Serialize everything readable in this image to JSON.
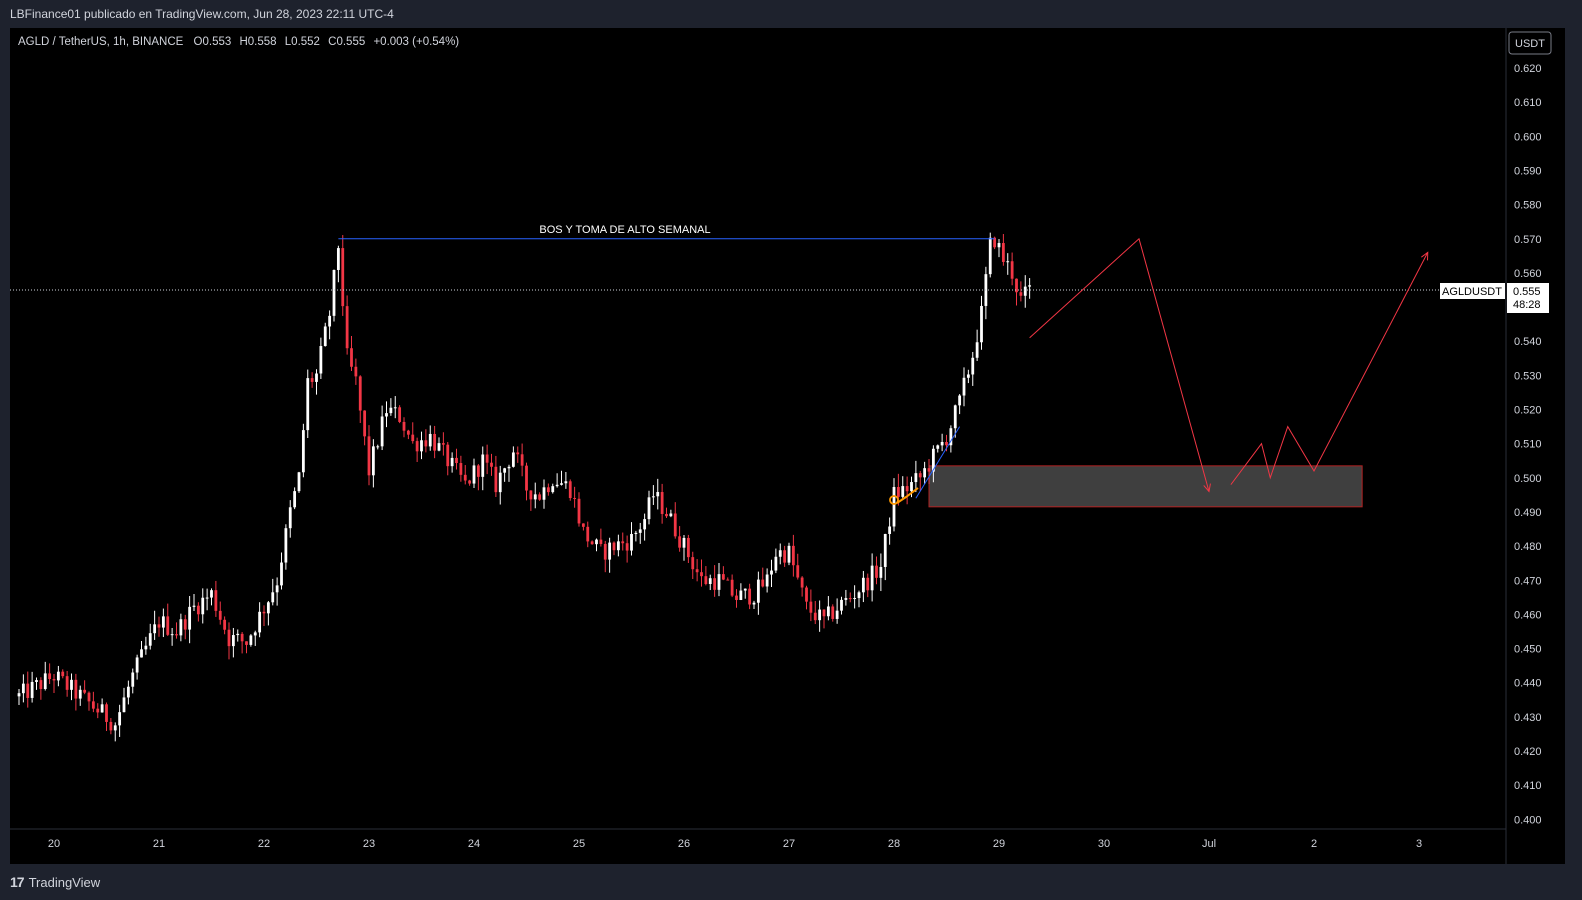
{
  "header": {
    "published": "LBFinance01 publicado en TradingView.com, Jun 28, 2023 22:11 UTC-4"
  },
  "legend": {
    "symbol": "AGLD / TetherUS, 1h, BINANCE",
    "open_label": "O",
    "open": "0.553",
    "high_label": "H",
    "high": "0.558",
    "low_label": "L",
    "low": "0.552",
    "close_label": "C",
    "close": "0.555",
    "change": "+0.003 (+0.54%)"
  },
  "price_axis": {
    "currency": "USDT",
    "ticks": [
      "0.620",
      "0.610",
      "0.600",
      "0.590",
      "0.580",
      "0.570",
      "0.560",
      "0.540",
      "0.530",
      "0.520",
      "0.510",
      "0.500",
      "0.490",
      "0.480",
      "0.470",
      "0.460",
      "0.450",
      "0.440",
      "0.430",
      "0.420",
      "0.410",
      "0.400"
    ]
  },
  "time_axis": {
    "ticks": [
      "20",
      "21",
      "22",
      "23",
      "24",
      "25",
      "26",
      "27",
      "28",
      "29",
      "30",
      "Jul",
      "2",
      "3"
    ]
  },
  "price_tag": {
    "symbol": "AGLDUSDT",
    "price": "0.555",
    "countdown": "48:28"
  },
  "annotation": {
    "bos_label": "BOS Y TOMA DE ALTO SEMANAL"
  },
  "footer": {
    "brand": "TradingView",
    "logo_glyph": "17"
  },
  "colors": {
    "background": "#000000",
    "up": "#ffffff",
    "down": "#f23645",
    "bos_line": "#2962ff",
    "projection": "#f23645",
    "zone_fill": "#4a4a4a",
    "zone_border": "#b22222",
    "marker": "#ff9800"
  },
  "chart_data": {
    "type": "candlestick",
    "symbol": "AGLD / TetherUS",
    "interval": "1h",
    "exchange": "BINANCE",
    "xlabel": "",
    "ylabel": "",
    "ylim": [
      0.395,
      0.625
    ],
    "grid": false,
    "last_price": 0.555,
    "price_path": [
      [
        "2023-06-19 16:00",
        0.436
      ],
      [
        "2023-06-20 00:00",
        0.442
      ],
      [
        "2023-06-20 06:00",
        0.436
      ],
      [
        "2023-06-20 10:00",
        0.432
      ],
      [
        "2023-06-20 14:00",
        0.428
      ],
      [
        "2023-06-20 18:00",
        0.442
      ],
      [
        "2023-06-21 00:00",
        0.458
      ],
      [
        "2023-06-21 04:00",
        0.455
      ],
      [
        "2023-06-21 08:00",
        0.462
      ],
      [
        "2023-06-21 12:00",
        0.466
      ],
      [
        "2023-06-21 16:00",
        0.453
      ],
      [
        "2023-06-21 20:00",
        0.452
      ],
      [
        "2023-06-22 00:00",
        0.462
      ],
      [
        "2023-06-22 03:00",
        0.47
      ],
      [
        "2023-06-22 06:00",
        0.49
      ],
      [
        "2023-06-22 08:00",
        0.5
      ],
      [
        "2023-06-22 10:00",
        0.528
      ],
      [
        "2023-06-22 12:00",
        0.53
      ],
      [
        "2023-06-22 15:00",
        0.548
      ],
      [
        "2023-06-22 17:00",
        0.568
      ],
      [
        "2023-06-22 19:00",
        0.535
      ],
      [
        "2023-06-22 21:00",
        0.528
      ],
      [
        "2023-06-23 00:00",
        0.502
      ],
      [
        "2023-06-23 04:00",
        0.52
      ],
      [
        "2023-06-23 07:00",
        0.518
      ],
      [
        "2023-06-23 10:00",
        0.51
      ],
      [
        "2023-06-23 14:00",
        0.512
      ],
      [
        "2023-06-23 18:00",
        0.505
      ],
      [
        "2023-06-23 22:00",
        0.498
      ],
      [
        "2023-06-24 02:00",
        0.505
      ],
      [
        "2023-06-24 05:00",
        0.498
      ],
      [
        "2023-06-24 09:00",
        0.508
      ],
      [
        "2023-06-24 12:00",
        0.497
      ],
      [
        "2023-06-24 15:00",
        0.495
      ],
      [
        "2023-06-24 18:00",
        0.5
      ],
      [
        "2023-06-24 22:00",
        0.497
      ],
      [
        "2023-06-25 01:00",
        0.484
      ],
      [
        "2023-06-25 05:00",
        0.478
      ],
      [
        "2023-06-25 08:00",
        0.48
      ],
      [
        "2023-06-25 12:00",
        0.482
      ],
      [
        "2023-06-25 15:00",
        0.488
      ],
      [
        "2023-06-25 17:00",
        0.495
      ],
      [
        "2023-06-25 20:00",
        0.49
      ],
      [
        "2023-06-26 00:00",
        0.48
      ],
      [
        "2023-06-26 04:00",
        0.47
      ],
      [
        "2023-06-26 08:00",
        0.47
      ],
      [
        "2023-06-26 12:00",
        0.465
      ],
      [
        "2023-06-26 16:00",
        0.466
      ],
      [
        "2023-06-26 19:00",
        0.47
      ],
      [
        "2023-06-26 21:00",
        0.478
      ],
      [
        "2023-06-27 00:00",
        0.478
      ],
      [
        "2023-06-27 04:00",
        0.462
      ],
      [
        "2023-06-27 08:00",
        0.458
      ],
      [
        "2023-06-27 11:00",
        0.462
      ],
      [
        "2023-06-27 14:00",
        0.465
      ],
      [
        "2023-06-27 18:00",
        0.47
      ],
      [
        "2023-06-27 21:00",
        0.474
      ],
      [
        "2023-06-28 00:00",
        0.495
      ],
      [
        "2023-06-28 03:00",
        0.497
      ],
      [
        "2023-06-28 06:00",
        0.5
      ],
      [
        "2023-06-28 09:00",
        0.506
      ],
      [
        "2023-06-28 12:00",
        0.512
      ],
      [
        "2023-06-28 15:00",
        0.522
      ],
      [
        "2023-06-28 18:00",
        0.536
      ],
      [
        "2023-06-28 20:00",
        0.548
      ],
      [
        "2023-06-28 22:00",
        0.568
      ],
      [
        "2023-06-28 23:00",
        0.57
      ],
      [
        "2023-06-29 01:00",
        0.564
      ],
      [
        "2023-06-29 03:00",
        0.56
      ],
      [
        "2023-06-29 05:00",
        0.552
      ],
      [
        "2023-06-29 07:00",
        0.555
      ]
    ],
    "drawings": {
      "bos_level": 0.57,
      "demand_zone": {
        "from": "2023-06-28 08:00",
        "to": "2023-07-02 11:00",
        "low": 0.4915,
        "high": 0.5035
      },
      "projection_path": [
        [
          "2023-06-29 07:00",
          0.541
        ],
        [
          "2023-06-30 08:00",
          0.57
        ],
        [
          "2023-07-01 00:00",
          0.496
        ],
        [
          "2023-07-01 05:00",
          0.498
        ],
        [
          "2023-07-01 12:00",
          0.51
        ],
        [
          "2023-07-01 14:00",
          0.5
        ],
        [
          "2023-07-01 18:00",
          0.515
        ],
        [
          "2023-07-02 00:00",
          0.502
        ],
        [
          "2023-07-03 02:00",
          0.566
        ]
      ]
    }
  }
}
